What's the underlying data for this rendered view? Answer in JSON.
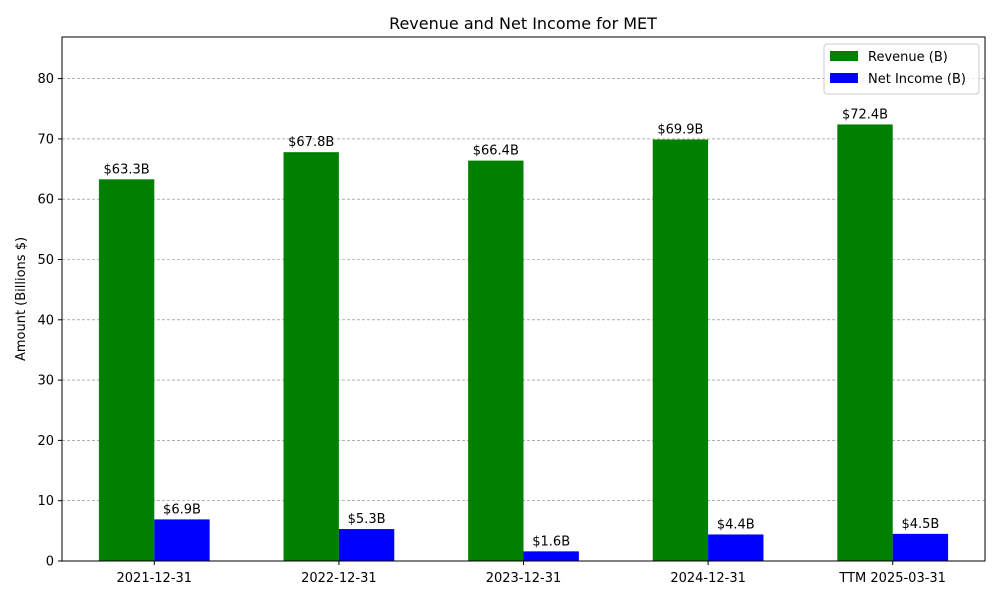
{
  "chart_data": {
    "type": "bar",
    "title": "Revenue and Net Income for MET",
    "xlabel": "",
    "ylabel": "Amount (Billions $)",
    "categories": [
      "2021-12-31",
      "2022-12-31",
      "2023-12-31",
      "2024-12-31",
      "TTM 2025-03-31"
    ],
    "series": [
      {
        "name": "Revenue (B)",
        "color": "#008000",
        "values": [
          63.3,
          67.8,
          66.4,
          69.9,
          72.4
        ],
        "labels": [
          "$63.3B",
          "$67.8B",
          "$66.4B",
          "$69.9B",
          "$72.4B"
        ]
      },
      {
        "name": "Net Income (B)",
        "color": "#0000ff",
        "values": [
          6.9,
          5.3,
          1.6,
          4.4,
          4.5
        ],
        "labels": [
          "$6.9B",
          "$5.3B",
          "$1.6B",
          "$4.4B",
          "$4.5B"
        ]
      }
    ],
    "ylim": [
      0,
      86.9
    ],
    "yticks": [
      0,
      10,
      20,
      30,
      40,
      50,
      60,
      70,
      80
    ],
    "grid": "y-dashed-gray",
    "legend_position": "top-right"
  }
}
